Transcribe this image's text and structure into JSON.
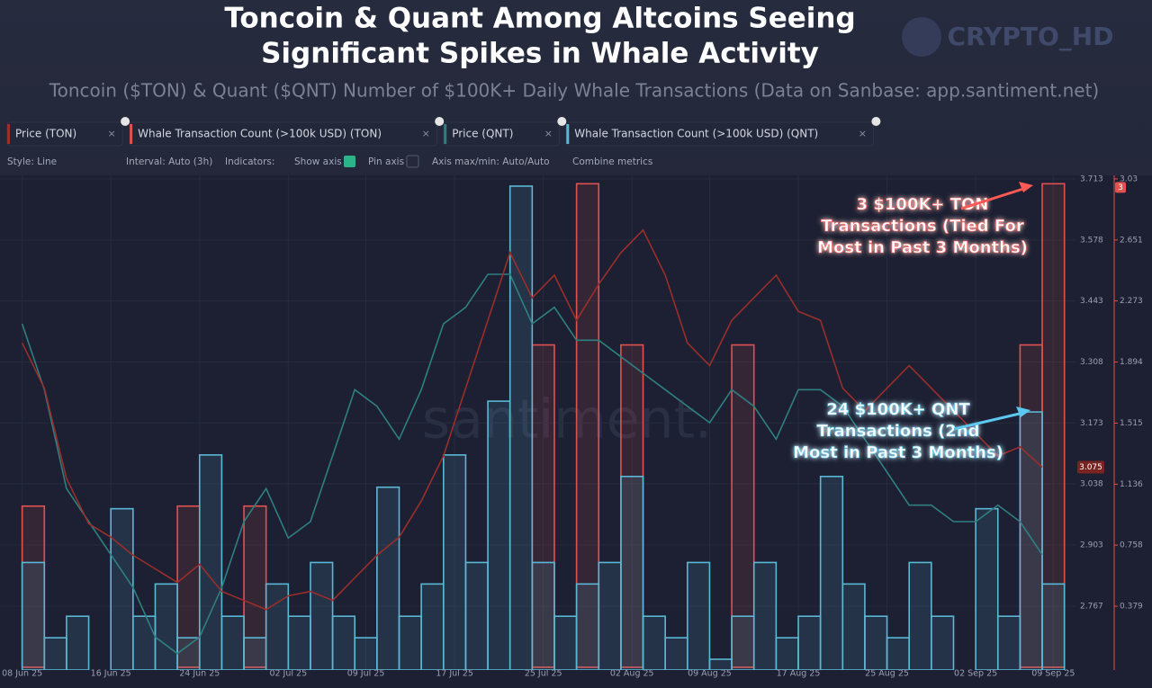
{
  "header": {
    "title_lines": [
      "Toncoin & Quant Among Altcoins Seeing",
      "Significant Spikes in Whale Activity"
    ],
    "subtitle": "Toncoin ($TON) & Quant ($QNT) Number of $100K+ Daily Whale Transactions (Data on Sanbase: app.santiment.net)",
    "watermark": "CRYPTO_HD"
  },
  "toolbar": [
    "Style: Line",
    "Interval: Auto (3h)",
    "Indicators:",
    "Show axis",
    "Pin axis",
    "Axis max/min: Auto/Auto",
    "Combine metrics"
  ],
  "chart_data": {
    "type": "line",
    "watermark": "santiment.",
    "x": [
      "2025-06-08",
      "2025-06-10",
      "2025-06-12",
      "2025-06-14",
      "2025-06-16",
      "2025-06-18",
      "2025-06-20",
      "2025-06-22",
      "2025-06-24",
      "2025-06-26",
      "2025-06-28",
      "2025-06-30",
      "2025-07-02",
      "2025-07-04",
      "2025-07-06",
      "2025-07-08",
      "2025-07-10",
      "2025-07-12",
      "2025-07-14",
      "2025-07-16",
      "2025-07-18",
      "2025-07-20",
      "2025-07-22",
      "2025-07-24",
      "2025-07-26",
      "2025-07-28",
      "2025-07-30",
      "2025-08-01",
      "2025-08-03",
      "2025-08-05",
      "2025-08-07",
      "2025-08-09",
      "2025-08-11",
      "2025-08-13",
      "2025-08-15",
      "2025-08-17",
      "2025-08-19",
      "2025-08-21",
      "2025-08-23",
      "2025-08-25",
      "2025-08-27",
      "2025-08-29",
      "2025-08-31",
      "2025-09-02",
      "2025-09-04",
      "2025-09-06",
      "2025-09-08"
    ],
    "xlim": [
      "2025-06-06",
      "2025-09-11"
    ],
    "xticks": [
      {
        "value": "2025-06-08",
        "label": "08 Jun 25"
      },
      {
        "value": "2025-06-16",
        "label": "16 Jun 25"
      },
      {
        "value": "2025-06-24",
        "label": "24 Jun 25"
      },
      {
        "value": "2025-07-02",
        "label": "02 Jul 25"
      },
      {
        "value": "2025-07-09",
        "label": "09 Jul 25"
      },
      {
        "value": "2025-07-17",
        "label": "17 Jul 25"
      },
      {
        "value": "2025-07-25",
        "label": "25 Jul 25"
      },
      {
        "value": "2025-08-02",
        "label": "02 Aug 25"
      },
      {
        "value": "2025-08-09",
        "label": "09 Aug 25"
      },
      {
        "value": "2025-08-17",
        "label": "17 Aug 25"
      },
      {
        "value": "2025-08-25",
        "label": "25 Aug 25"
      },
      {
        "value": "2025-09-02",
        "label": "02 Sep 25"
      },
      {
        "value": "2025-09-09",
        "label": "09 Sep 25"
      }
    ],
    "ylim": [
      2.626,
      3.721
    ],
    "yticks": [
      3.713,
      3.578,
      3.443,
      3.308,
      3.173,
      3.038,
      2.903,
      2.767
    ],
    "y2lim": [
      -0.017,
      3.052
    ],
    "y2ticks": [
      3.03,
      2.651,
      2.273,
      1.894,
      1.515,
      1.136,
      0.758,
      0.379
    ],
    "y3lim": [
      95,
      125
    ],
    "y4lim": [
      0,
      46
    ],
    "grid": true,
    "series": [
      {
        "name": "Price (TON)",
        "color": "#9a2e2b",
        "style": "line",
        "axis": "y",
        "values": [
          3.35,
          3.25,
          3.05,
          2.95,
          2.92,
          2.88,
          2.85,
          2.82,
          2.86,
          2.8,
          2.78,
          2.76,
          2.79,
          2.8,
          2.78,
          2.83,
          2.88,
          2.92,
          3.0,
          3.1,
          3.25,
          3.4,
          3.55,
          3.45,
          3.5,
          3.4,
          3.48,
          3.55,
          3.6,
          3.5,
          3.35,
          3.3,
          3.4,
          3.45,
          3.5,
          3.42,
          3.4,
          3.25,
          3.2,
          3.25,
          3.3,
          3.25,
          3.2,
          3.15,
          3.1,
          3.12,
          3.075
        ]
      },
      {
        "name": "Whale Transaction Count (>100k USD) (TON)",
        "color": "#e0524f",
        "style": "step",
        "axis": "y2",
        "values": [
          1,
          0,
          0,
          0,
          0,
          0,
          0,
          1,
          0,
          0,
          1,
          0,
          0,
          0,
          0,
          0,
          0,
          0,
          0,
          0,
          0,
          0,
          0,
          2,
          0,
          3,
          0,
          2,
          0,
          0,
          0,
          0,
          2,
          0,
          0,
          0,
          0,
          0,
          0,
          0,
          0,
          0,
          0,
          0,
          0,
          2,
          3
        ]
      },
      {
        "name": "Price (QNT)",
        "color": "#2f7f80",
        "style": "line",
        "axis": "y3",
        "values": [
          116,
          112,
          106,
          104,
          102,
          100,
          97,
          96,
          97,
          100,
          104,
          106,
          103,
          104,
          108,
          112,
          111,
          109,
          112,
          116,
          117,
          119,
          119,
          116,
          117,
          115,
          115,
          114,
          113,
          112,
          111,
          110,
          112,
          111,
          109,
          112,
          112,
          111,
          109,
          107,
          105,
          105,
          104,
          104,
          105,
          104,
          102
        ]
      },
      {
        "name": "Whale Transaction Count (>100k USD) (QNT)",
        "color": "#5ab8d6",
        "style": "step",
        "axis": "y4",
        "values": [
          10,
          3,
          5,
          0,
          15,
          5,
          8,
          3,
          20,
          5,
          3,
          8,
          5,
          10,
          5,
          3,
          17,
          5,
          8,
          20,
          10,
          25,
          45,
          10,
          5,
          8,
          10,
          18,
          5,
          3,
          10,
          1,
          5,
          10,
          3,
          5,
          18,
          8,
          5,
          3,
          10,
          5,
          0,
          15,
          5,
          24,
          8
        ]
      }
    ],
    "annotations": [
      {
        "color": "#ff5a55",
        "lines": [
          "3 $100K+ TON",
          "Transactions (Tied For",
          "Most in Past 3 Months)"
        ]
      },
      {
        "color": "#5cc8f0",
        "lines": [
          "24 $100K+ QNT",
          "Transactions (2nd",
          "Most in Past 3 Months)"
        ]
      }
    ]
  }
}
